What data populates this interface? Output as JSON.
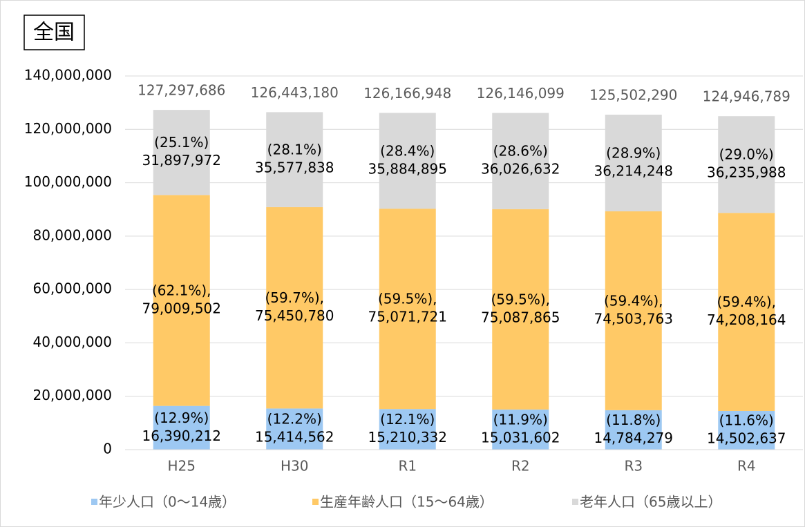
{
  "chart_data": {
    "type": "stacked_bar",
    "title": "全国",
    "categories": [
      "H25",
      "H30",
      "R1",
      "R2",
      "R3",
      "R4"
    ],
    "series": [
      {
        "name": "年少人口（0～14歳）",
        "color": "#9dc8f2",
        "values": [
          16390212,
          15414562,
          15210332,
          15031602,
          14784279,
          14502637
        ],
        "value_labels": [
          "16,390,212",
          "15,414,562",
          "15,210,332",
          "15,031,602",
          "14,784,279",
          "14,502,637"
        ],
        "share_labels": [
          "(12.9%)",
          "(12.2%)",
          "(12.1%)",
          "(11.9%)",
          "(11.8%)",
          "(11.6%)"
        ]
      },
      {
        "name": "生産年齢人口（15～64歳）",
        "color": "#ffc966",
        "values": [
          79009502,
          75450780,
          75071721,
          75087865,
          74503763,
          74208164
        ],
        "value_labels": [
          "79,009,502",
          "75,450,780",
          "75,071,721",
          "75,087,865",
          "74,503,763",
          "74,208,164"
        ],
        "share_labels": [
          "(62.1%),",
          "(59.7%),",
          "(59.5%),",
          "(59.5%),",
          "(59.4%),",
          "(59.4%),"
        ]
      },
      {
        "name": "老年人口（65歳以上）",
        "color": "#d9d9d9",
        "values": [
          31897972,
          35577838,
          35884895,
          36026632,
          36214248,
          36235988
        ],
        "value_labels": [
          "31,897,972",
          "35,577,838",
          "35,884,895",
          "36,026,632",
          "36,214,248",
          "36,235,988"
        ],
        "share_labels": [
          "(25.1%)",
          "(28.1%)",
          "(28.4%)",
          "(28.6%)",
          "(28.9%)",
          "(29.0%)"
        ]
      }
    ],
    "totals": {
      "values": [
        127297686,
        126443180,
        126166948,
        126146099,
        125502290,
        124946789
      ],
      "value_labels": [
        "127,297,686",
        "126,443,180",
        "126,166,948",
        "126,146,099",
        "125,502,290",
        "124,946,789"
      ]
    },
    "ylim": [
      0,
      140000000
    ],
    "yticks": [
      0,
      {
        "value": 20000000,
        "label": "20,000,000"
      },
      {
        "value": 40000000,
        "label": "40,000,000"
      },
      {
        "value": 60000000,
        "label": "60,000,000"
      },
      {
        "value": 80000000,
        "label": "80,000,000"
      },
      {
        "value": 100000000,
        "label": "100,000,000"
      },
      {
        "value": 120000000,
        "label": "120,000,000"
      },
      {
        "value": 140000000,
        "label": "140,000,000"
      }
    ],
    "grid": true,
    "legend": "bottom"
  }
}
